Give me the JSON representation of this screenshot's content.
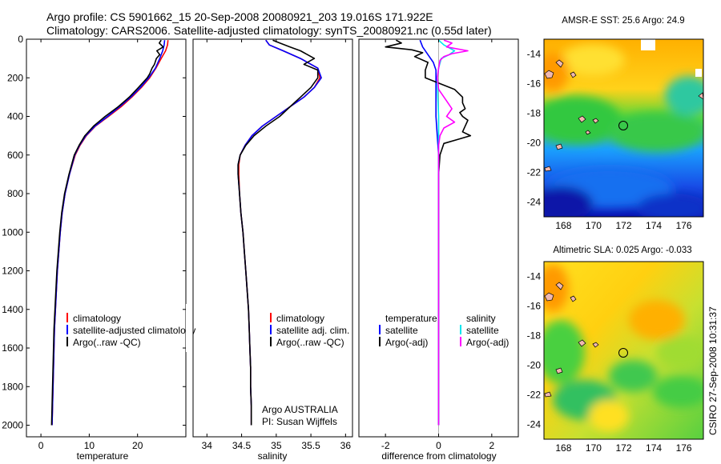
{
  "figure": {
    "title_line1": "Argo profile: CS 5901662_15 20-Sep-2008 20080921_203 19.016S 171.922E",
    "title_line2": "Climatology: CARS2006. Satellite-adjusted climatology: synTS_20080921.nc (0.55d later)",
    "footer_credit": "CSIRO 27-Sep-2008 10:31:37",
    "colors": {
      "climatology": "#ff0000",
      "satellite": "#0000ff",
      "argo": "#000000",
      "sat_salinity": "#00e5ee",
      "argo_salinity": "#ff00ff"
    }
  },
  "chart_data": [
    {
      "type": "line",
      "title": "",
      "xlabel": "temperature",
      "ylabel": "",
      "xlim": [
        -3,
        30
      ],
      "ylim": [
        2060,
        0
      ],
      "xticks": [
        0,
        10,
        20
      ],
      "yticks": [
        0,
        200,
        400,
        600,
        800,
        1000,
        1200,
        1400,
        1600,
        1800,
        2000
      ],
      "legend": [
        "climatology",
        "satellite-adjusted climatology",
        "Argo(..raw -QC)"
      ],
      "legend_position": "lower-center",
      "series": [
        {
          "name": "climatology",
          "depth": [
            5,
            30,
            60,
            100,
            150,
            200,
            250,
            300,
            350,
            400,
            450,
            500,
            550,
            600,
            700,
            800,
            900,
            1000,
            1100,
            1200,
            1300,
            1400,
            1500,
            1600,
            1700,
            1800,
            1900,
            2000
          ],
          "values": [
            26.3,
            26.2,
            25.8,
            24.9,
            23.8,
            22.5,
            20.8,
            18.8,
            16.6,
            14.0,
            11.3,
            9.4,
            8.1,
            7.1,
            5.9,
            5.0,
            4.4,
            4.0,
            3.7,
            3.4,
            3.2,
            3.0,
            2.8,
            2.7,
            2.6,
            2.5,
            2.4,
            2.3
          ]
        },
        {
          "name": "satellite-adjusted climatology",
          "depth": [
            5,
            30,
            60,
            100,
            150,
            200,
            250,
            300,
            350,
            400,
            450,
            500,
            550,
            600,
            700,
            800,
            900,
            1000,
            1100,
            1200,
            1300,
            1400,
            1500,
            1600,
            1700,
            1800,
            1900,
            2000
          ],
          "values": [
            25.6,
            25.5,
            25.2,
            24.6,
            23.7,
            22.3,
            20.6,
            18.6,
            16.3,
            13.8,
            11.2,
            9.3,
            8.0,
            7.0,
            5.9,
            5.0,
            4.4,
            4.0,
            3.7,
            3.4,
            3.2,
            3.0,
            2.8,
            2.7,
            2.6,
            2.5,
            2.4,
            2.3
          ]
        },
        {
          "name": "Argo(..raw -QC)",
          "depth": [
            5,
            20,
            40,
            60,
            80,
            100,
            130,
            150,
            180,
            200,
            250,
            300,
            350,
            400,
            450,
            500,
            550,
            600,
            700,
            800,
            900,
            1000,
            1100,
            1200,
            1300,
            1400,
            1500,
            1600,
            1700,
            1800,
            1900,
            2000
          ],
          "values": [
            24.9,
            24.5,
            25.3,
            24.0,
            24.6,
            23.9,
            23.5,
            23.0,
            22.5,
            22.0,
            20.2,
            18.3,
            16.0,
            13.3,
            10.9,
            9.1,
            7.9,
            6.9,
            5.8,
            4.9,
            4.3,
            3.9,
            3.6,
            3.3,
            3.1,
            2.9,
            2.7,
            2.6,
            2.5,
            2.4,
            2.3,
            2.2
          ]
        }
      ]
    },
    {
      "type": "line",
      "title": "",
      "xlabel": "salinity",
      "ylabel": "",
      "xlim": [
        33.8,
        36.1
      ],
      "ylim": [
        2060,
        0
      ],
      "xticks": [
        34,
        34.5,
        35,
        35.5,
        36
      ],
      "yticks": [],
      "legend": [
        "climatology",
        "satellite adj. clim.",
        "Argo(..raw -QC)"
      ],
      "legend_position": "lower-right",
      "annotation": [
        "Argo AUSTRALIA",
        "PI: Susan Wijffels"
      ],
      "series": [
        {
          "name": "climatology",
          "depth": [
            5,
            30,
            60,
            100,
            150,
            200,
            250,
            300,
            350,
            400,
            450,
            500,
            550,
            600,
            650,
            700,
            800,
            900,
            1000,
            1100,
            1200,
            1300,
            1400,
            1500,
            1600,
            1700,
            1800,
            1900,
            2000
          ],
          "values": [
            34.85,
            34.9,
            35.1,
            35.35,
            35.6,
            35.63,
            35.55,
            35.4,
            35.2,
            35.0,
            34.8,
            34.65,
            34.55,
            34.48,
            34.46,
            34.46,
            34.47,
            34.49,
            34.52,
            34.54,
            34.56,
            34.58,
            34.6,
            34.61,
            34.62,
            34.63,
            34.63,
            34.64,
            34.64
          ]
        },
        {
          "name": "satellite adj. clim.",
          "depth": [
            5,
            30,
            60,
            100,
            150,
            200,
            250,
            300,
            350,
            400,
            450,
            500,
            550,
            600,
            650,
            700,
            800,
            900,
            1000,
            1100,
            1200,
            1300,
            1400,
            1500,
            1600,
            1700,
            1800,
            1900,
            2000
          ],
          "values": [
            34.85,
            34.9,
            35.1,
            35.35,
            35.6,
            35.65,
            35.55,
            35.4,
            35.2,
            35.0,
            34.8,
            34.65,
            34.55,
            34.48,
            34.45,
            34.45,
            34.47,
            34.49,
            34.52,
            34.54,
            34.56,
            34.58,
            34.6,
            34.61,
            34.62,
            34.63,
            34.63,
            34.64,
            34.64
          ]
        },
        {
          "name": "Argo(..raw -QC)",
          "depth": [
            5,
            20,
            40,
            60,
            80,
            100,
            130,
            160,
            200,
            250,
            300,
            350,
            400,
            450,
            500,
            550,
            600,
            650,
            700,
            800,
            900,
            1000,
            1100,
            1200,
            1300,
            1400,
            1500,
            1600,
            1700,
            1800,
            1900,
            2000
          ],
          "values": [
            34.95,
            35.05,
            35.2,
            35.35,
            35.45,
            35.55,
            35.4,
            35.6,
            35.6,
            35.5,
            35.35,
            35.2,
            35.05,
            34.85,
            34.68,
            34.56,
            34.48,
            34.45,
            34.45,
            34.47,
            34.49,
            34.52,
            34.54,
            34.56,
            34.58,
            34.6,
            34.61,
            34.62,
            34.63,
            34.63,
            34.64,
            34.64
          ]
        }
      ]
    },
    {
      "type": "line",
      "title": "",
      "xlabel": "difference from climatology",
      "ylabel": "",
      "xlim": [
        -3,
        3
      ],
      "ylim": [
        2060,
        0
      ],
      "xticks": [
        -2,
        0,
        2
      ],
      "yticks": [],
      "legend": [
        "temperature",
        "satellite",
        "Argo(-adj)",
        "salinity",
        "satellite",
        "Argo(-adj)"
      ],
      "legend_position": "lower-center",
      "series": [
        {
          "name": "temperature satellite",
          "depth": [
            5,
            40,
            80,
            120,
            160,
            200,
            260,
            320,
            400,
            500,
            600,
            700,
            800,
            1000,
            1200,
            1400,
            1600,
            1800,
            2000
          ],
          "values": [
            -0.7,
            -0.6,
            -0.4,
            -0.2,
            -0.1,
            -0.1,
            -0.1,
            -0.1,
            -0.1,
            -0.05,
            0,
            0,
            0,
            0,
            0,
            0,
            0,
            0,
            0
          ]
        },
        {
          "name": "temperature Argo(-adj)",
          "depth": [
            5,
            20,
            40,
            55,
            70,
            90,
            120,
            160,
            200,
            260,
            300,
            330,
            360,
            380,
            400,
            420,
            450,
            480,
            500,
            520,
            540,
            600,
            700,
            800,
            1000,
            1200,
            1400,
            1600,
            1800,
            2000
          ],
          "values": [
            -1.6,
            -1.4,
            -2.0,
            -1.0,
            -0.6,
            -0.9,
            -0.4,
            -0.5,
            -0.5,
            0.6,
            0.9,
            0.9,
            1.0,
            0.8,
            0.9,
            1.1,
            1.0,
            0.9,
            1.2,
            0.7,
            0.2,
            0.05,
            0,
            0,
            0,
            0,
            0,
            0,
            0,
            0
          ]
        },
        {
          "name": "salinity satellite",
          "depth": [
            5,
            30,
            60,
            80,
            100,
            150,
            200,
            300,
            400,
            500,
            600,
            800,
            1000,
            1200,
            1400,
            1600,
            1800,
            2000
          ],
          "values": [
            0,
            0.2,
            0.6,
            0.4,
            0.1,
            0.0,
            -0.05,
            -0.03,
            0,
            0,
            0,
            0,
            0,
            0,
            0,
            0,
            0,
            0
          ]
        },
        {
          "name": "salinity Argo(-adj)",
          "depth": [
            5,
            20,
            40,
            60,
            75,
            90,
            110,
            150,
            200,
            260,
            320,
            360,
            400,
            430,
            460,
            500,
            550,
            600,
            700,
            800,
            1000,
            1200,
            1400,
            1600,
            1800,
            2000
          ],
          "values": [
            0.2,
            0.5,
            0.3,
            1.1,
            0.5,
            0.2,
            0.05,
            0.0,
            -0.05,
            0.0,
            0.3,
            0.5,
            0.3,
            0.6,
            0.2,
            0.05,
            0.0,
            0.0,
            0,
            0,
            0,
            0,
            0,
            0,
            0,
            0
          ]
        }
      ]
    },
    {
      "type": "heatmap",
      "title": "AMSR-E SST: 25.6 Argo: 24.9",
      "xlabel": "",
      "ylabel": "",
      "xlim": [
        166.7,
        177.3
      ],
      "ylim": [
        -25.0,
        -13.0
      ],
      "xticks": [
        168,
        170,
        172,
        174,
        176
      ],
      "yticks": [
        -14,
        -16,
        -18,
        -20,
        -22,
        -24
      ],
      "marker": {
        "lon": 171.922,
        "lat": -19.016
      }
    },
    {
      "type": "heatmap",
      "title": "Altimetric SLA: 0.025 Argo: -0.033",
      "xlabel": "",
      "ylabel": "",
      "xlim": [
        166.7,
        177.3
      ],
      "ylim": [
        -25.0,
        -13.0
      ],
      "xticks": [
        168,
        170,
        172,
        174,
        176
      ],
      "yticks": [
        -14,
        -16,
        -18,
        -20,
        -22,
        -24
      ],
      "marker": {
        "lon": 171.922,
        "lat": -19.016
      }
    }
  ]
}
